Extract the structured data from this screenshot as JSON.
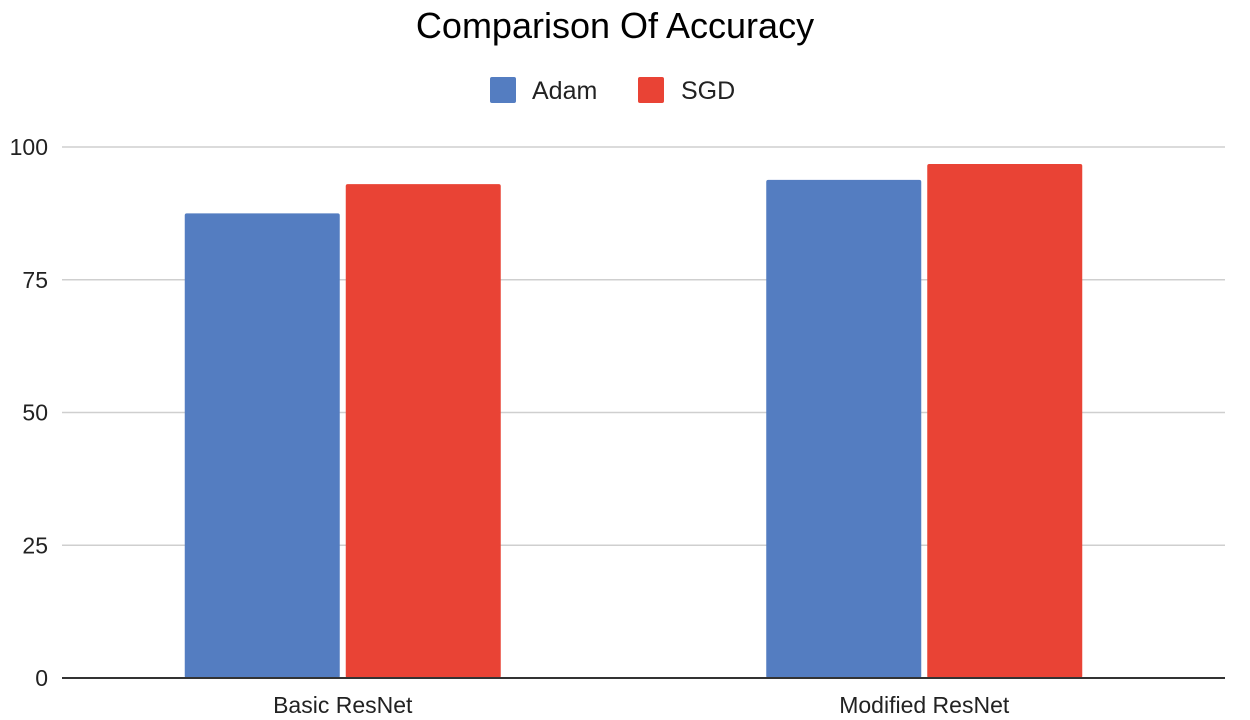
{
  "chart_data": {
    "type": "bar",
    "title": "Comparison Of Accuracy",
    "categories": [
      "Basic ResNet",
      "Modified ResNet"
    ],
    "series": [
      {
        "name": "Adam",
        "values": [
          87.5,
          93.8
        ],
        "color": "#547DC1"
      },
      {
        "name": "SGD",
        "values": [
          93.0,
          96.8
        ],
        "color": "#E94335"
      }
    ],
    "xlabel": "",
    "ylabel": "",
    "ylim": [
      0,
      100
    ],
    "yticks": [
      0,
      25,
      50,
      75,
      100
    ],
    "grid": true,
    "legend_position": "top-center"
  }
}
